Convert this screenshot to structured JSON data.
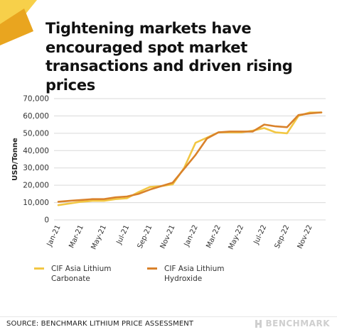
{
  "title": "Tightening markets have encouraged spot market transactions and driven rising prices",
  "source": "SOURCE: BENCHMARK LITHIUM PRICE ASSESSMENT",
  "brand": "BENCHMARK",
  "icons": {
    "corner": "corner-triangle-icon",
    "brand": "benchmark-logo-icon"
  },
  "colors": {
    "corner_dark": "#E9A51F",
    "corner_light": "#F7D04A",
    "grid": "#d9d9d9"
  },
  "chart_data": {
    "type": "line",
    "ylabel": "USD/Tonne",
    "xlabel": "",
    "ylim": [
      0,
      70000
    ],
    "yticks": [
      0,
      10000,
      20000,
      30000,
      40000,
      50000,
      60000,
      70000
    ],
    "ytick_labels": [
      "0",
      "10,000",
      "20,000",
      "30,000",
      "40,000",
      "50,000",
      "60,000",
      "70,000"
    ],
    "x": [
      "Jan-21",
      "Feb-21",
      "Mar-21",
      "Apr-21",
      "May-21",
      "Jun-21",
      "Jul-21",
      "Aug-21",
      "Sep-21",
      "Oct-21",
      "Nov-21",
      "Dec-21",
      "Jan-22",
      "Feb-22",
      "Mar-22",
      "Apr-22",
      "May-22",
      "Jun-22",
      "Jul-22",
      "Aug-22",
      "Sep-22",
      "Oct-22",
      "Nov-22",
      "Dec-22"
    ],
    "xtick_labels": [
      "Jan-21",
      "Mar-21",
      "May-21",
      "Jul-21",
      "Sep-21",
      "Nov-21",
      "Jan-22",
      "Mar-22",
      "May-22",
      "Jul-22",
      "Sep-22",
      "Nov-22"
    ],
    "grid": "horizontal",
    "legend_position": "bottom",
    "series": [
      {
        "name": "CIF Asia Lithium Carbonate",
        "color": "#F2C744",
        "values": [
          8500,
          9500,
          10500,
          11000,
          11000,
          12000,
          12500,
          16000,
          19000,
          19500,
          20500,
          30000,
          44500,
          47500,
          50500,
          50500,
          50500,
          51500,
          53000,
          50500,
          50000,
          60000,
          62000,
          62000
        ]
      },
      {
        "name": "CIF Asia Lithium Hydroxide",
        "color": "#D9822B",
        "values": [
          10500,
          11000,
          11500,
          12000,
          12000,
          13000,
          13500,
          15000,
          17500,
          19500,
          21500,
          29500,
          37500,
          47000,
          50500,
          51000,
          51000,
          51000,
          55000,
          54000,
          53500,
          60500,
          61500,
          62000
        ]
      }
    ]
  }
}
